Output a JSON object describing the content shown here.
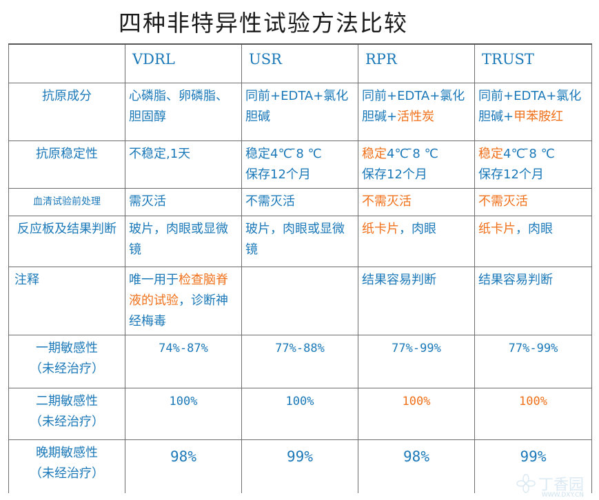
{
  "title": "四种非特异性试验方法比较",
  "columns": [
    "",
    "VDRL",
    "USR",
    "RPR",
    "TRUST"
  ],
  "rows": {
    "antigen": {
      "label": "抗原成分",
      "vdrl": "心磷脂、卵磷脂、胆固醇",
      "usr": "同前+EDTA+氯化胆碱",
      "rpr_a": "同前+EDTA+氯化胆碱+",
      "rpr_b": "活性炭",
      "trust_a": "同前+EDTA+氯化胆碱+",
      "trust_b": "甲苯胺红"
    },
    "stability": {
      "label": "抗原稳定性",
      "vdrl": "不稳定,1天",
      "usr_a": "稳定4℃ ̄8 ℃",
      "usr_b": "保存12个月",
      "rpr_a1": "稳定",
      "rpr_a2": "4℃ ̄8 ℃",
      "rpr_b": "保存12个月",
      "trust_a1": "稳定",
      "trust_a2": "4℃ ̄8 ℃",
      "trust_b": "保存12个月"
    },
    "pretreat": {
      "label": "血清试验前处理",
      "vdrl": "需灭活",
      "usr": "不需灭活",
      "rpr": "不需灭活",
      "trust": "不需灭活"
    },
    "reaction": {
      "label": "反应板及结果判断",
      "vdrl": "玻片，肉眼或显微镜",
      "usr": "玻片，肉眼或显微镜",
      "rpr_a": "纸卡片",
      "rpr_b": "，肉眼",
      "trust_a": "纸卡片",
      "trust_b": "，肉眼"
    },
    "notes": {
      "label": "注释",
      "vdrl_a": "唯一用于",
      "vdrl_b": "检查脑脊液的试验",
      "vdrl_c": "，诊断神经梅毒",
      "usr": "",
      "rpr": "结果容易判断",
      "trust": "结果容易判断"
    },
    "primary": {
      "label_a": "一期敏感性",
      "label_b": "（未经治疗）",
      "vdrl": "74%-87%",
      "usr": "77%-88%",
      "rpr": "77%-99%",
      "trust": "77%-99%"
    },
    "secondary": {
      "label_a": "二期敏感性",
      "label_b": "（未经治疗）",
      "vdrl": "100%",
      "usr": "100%",
      "rpr": "100%",
      "trust": "100%"
    },
    "late": {
      "label_a": "晚期敏感性",
      "label_b": "（未经治疗）",
      "vdrl": "98%",
      "usr": "99%",
      "rpr": "98%",
      "trust": "99%"
    }
  },
  "watermark": {
    "brand": "丁香园",
    "url": "WWW.DXY.CN"
  },
  "colors": {
    "text_blue": "#1a78b8",
    "highlight_orange": "#f0701a",
    "title": "#1a1a1a",
    "border": "#6b6b6b"
  }
}
